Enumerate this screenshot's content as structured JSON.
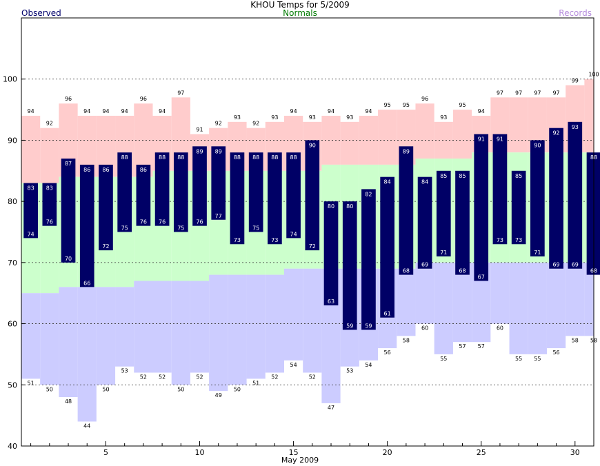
{
  "chart_data": {
    "type": "bar",
    "title": "KHOU Temps for 5/2009",
    "legend": {
      "observed": "Observed",
      "normals": "Normals",
      "records": "Records"
    },
    "xlabel": "May 2009",
    "ylim": [
      40,
      110
    ],
    "yticks": [
      40,
      50,
      60,
      70,
      80,
      90,
      100
    ],
    "xticks": [
      5,
      10,
      15,
      20,
      25,
      30
    ],
    "grid": "dashed horizontal at 50, 60, 70, 80, 90, 100",
    "days": [
      1,
      2,
      3,
      4,
      5,
      6,
      7,
      8,
      9,
      10,
      11,
      12,
      13,
      14,
      15,
      16,
      17,
      18,
      19,
      20,
      21,
      22,
      23,
      24,
      25,
      26,
      27,
      28,
      29,
      30,
      31
    ],
    "series": [
      {
        "name": "Observed High",
        "values": [
          83,
          83,
          87,
          86,
          86,
          88,
          86,
          88,
          88,
          89,
          89,
          88,
          88,
          88,
          88,
          90,
          80,
          80,
          82,
          84,
          89,
          84,
          85,
          85,
          91,
          91,
          85,
          90,
          92,
          93,
          88
        ]
      },
      {
        "name": "Observed Low",
        "values": [
          74,
          76,
          70,
          66,
          72,
          75,
          76,
          76,
          75,
          76,
          77,
          73,
          75,
          73,
          74,
          72,
          63,
          59,
          59,
          61,
          68,
          69,
          71,
          68,
          67,
          73,
          73,
          71,
          69,
          69,
          68
        ]
      },
      {
        "name": "Normal High",
        "values": [
          83,
          83,
          84,
          84,
          84,
          84,
          84,
          85,
          85,
          85,
          85,
          85,
          85,
          85,
          85,
          85,
          86,
          86,
          86,
          86,
          86,
          87,
          87,
          87,
          88,
          88,
          88,
          88,
          88,
          88,
          88
        ]
      },
      {
        "name": "Normal Low",
        "values": [
          65,
          65,
          66,
          66,
          66,
          66,
          67,
          67,
          67,
          67,
          68,
          68,
          68,
          68,
          69,
          69,
          69,
          69,
          69,
          69,
          69,
          70,
          70,
          70,
          70,
          70,
          70,
          70,
          70,
          70,
          70
        ]
      },
      {
        "name": "Record High",
        "values": [
          94,
          92,
          96,
          94,
          94,
          94,
          96,
          94,
          97,
          91,
          92,
          93,
          92,
          93,
          94,
          93,
          94,
          93,
          94,
          95,
          95,
          96,
          93,
          95,
          94,
          97,
          97,
          97,
          97,
          99,
          100
        ]
      },
      {
        "name": "Record Low",
        "values": [
          51,
          50,
          48,
          44,
          50,
          53,
          52,
          52,
          50,
          52,
          49,
          50,
          51,
          52,
          54,
          52,
          47,
          53,
          54,
          56,
          58,
          60,
          55,
          57,
          57,
          60,
          55,
          55,
          56,
          58,
          58
        ]
      }
    ],
    "colors": {
      "observed": "#000066",
      "normal": "#ccffcc",
      "record_high": "#ffcccc",
      "record_low": "#ccccff",
      "observed_legend": "#00006b",
      "normals_legend": "#007a00",
      "records_legend": "#b48bdc"
    }
  }
}
